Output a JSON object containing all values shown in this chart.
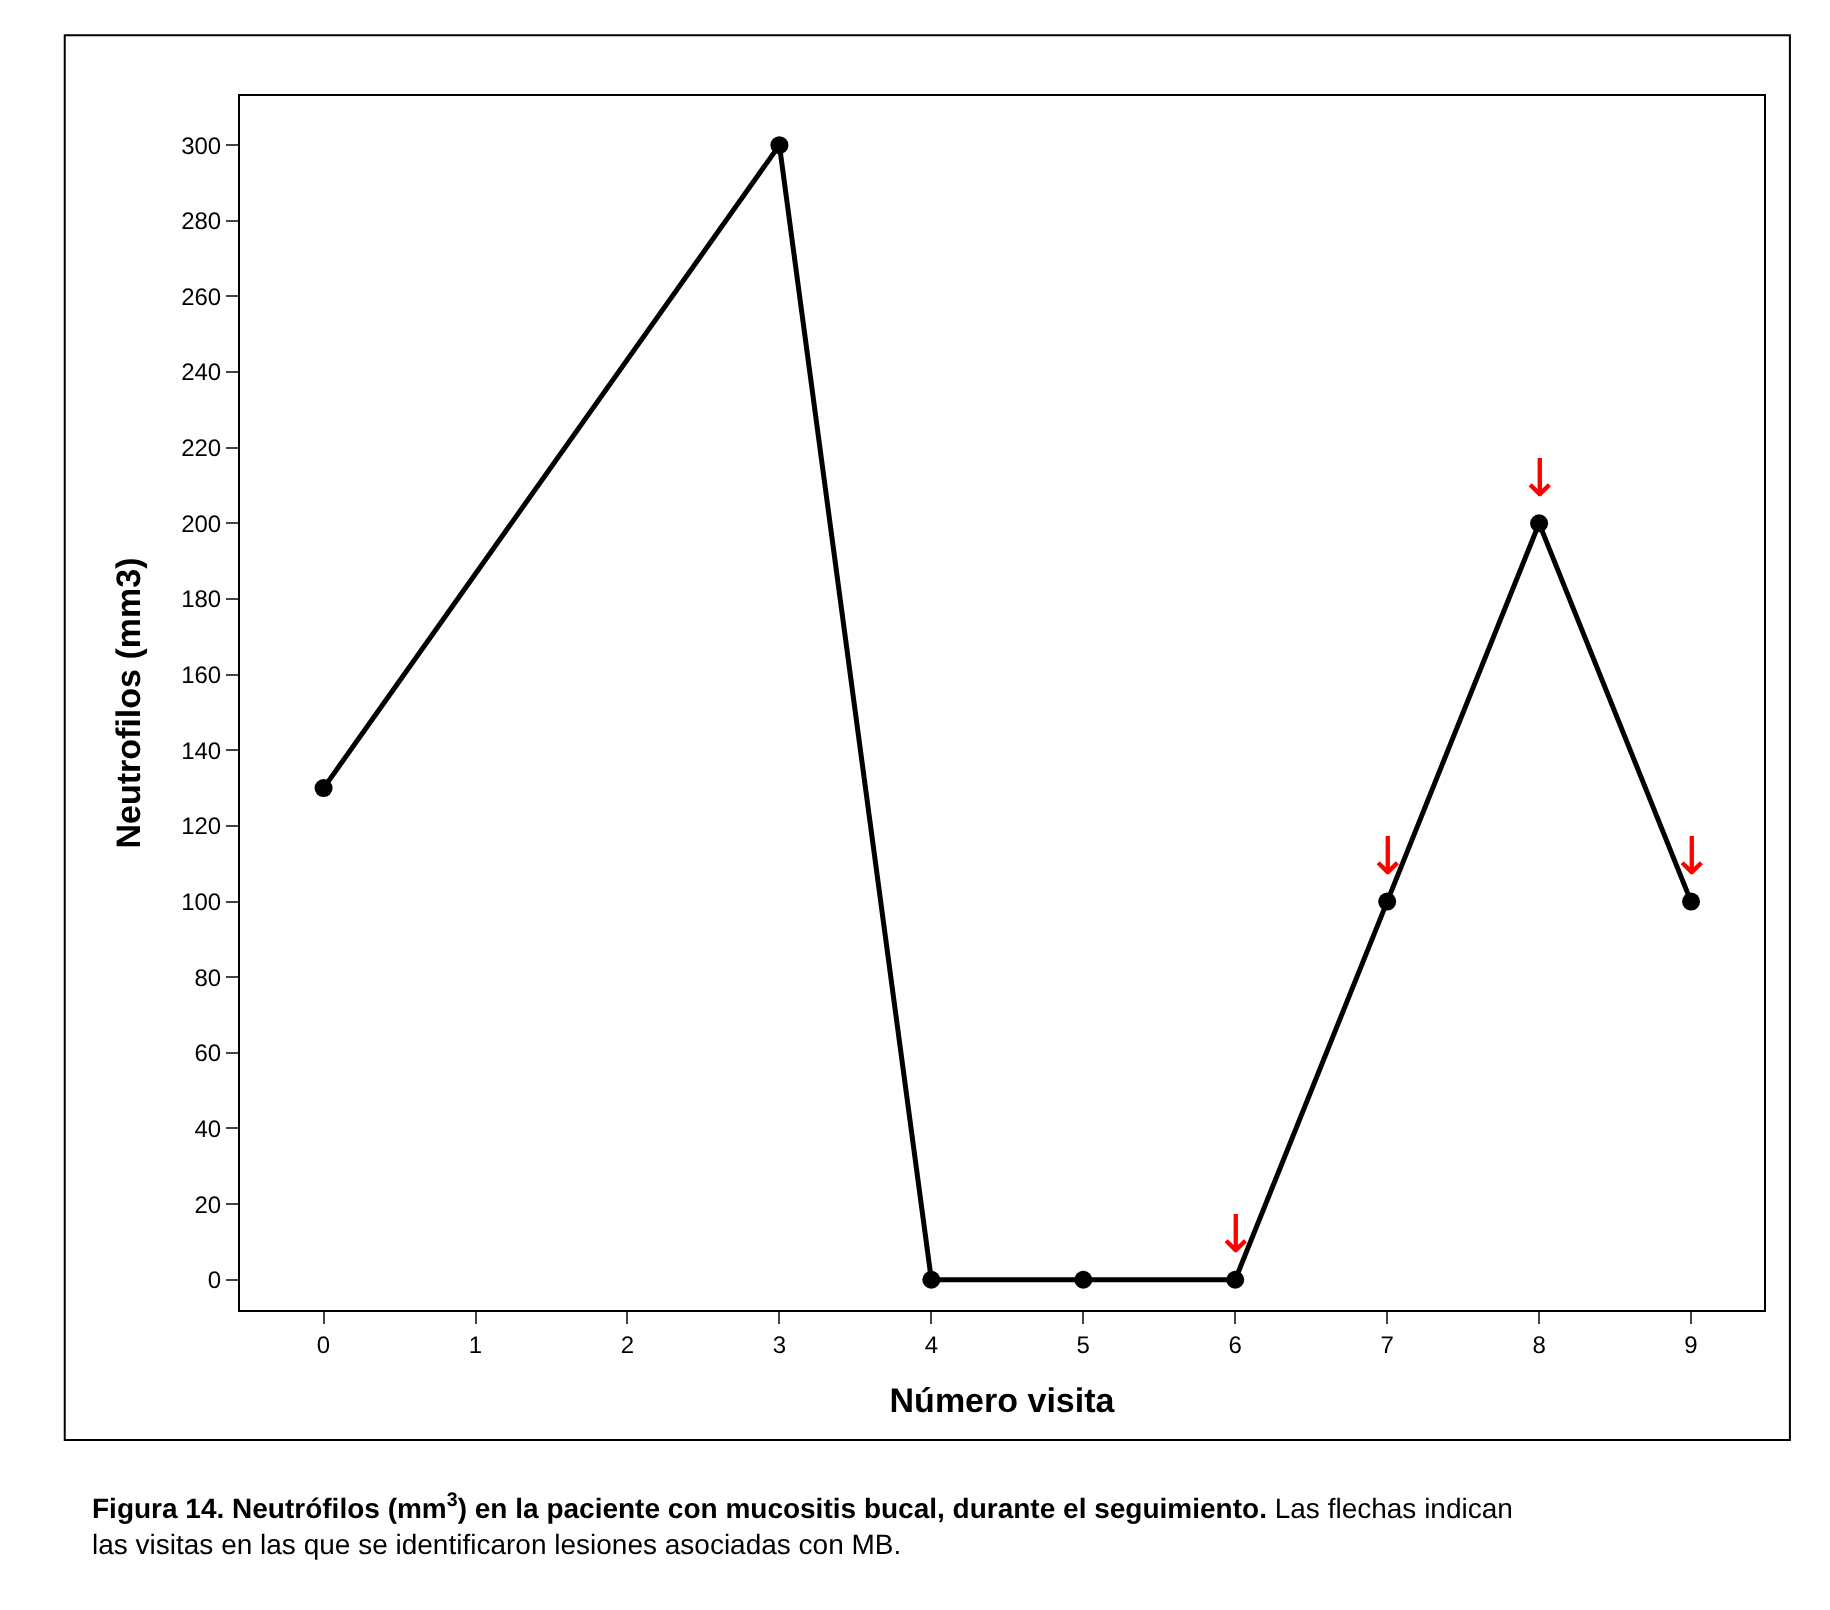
{
  "chart_data": {
    "type": "line",
    "xlabel": "Número visita",
    "ylabel": "Neutrofilos (mm3)",
    "x": [
      0,
      3,
      4,
      5,
      6,
      7,
      8,
      9
    ],
    "series": [
      {
        "color": "#000000",
        "values": [
          130,
          300,
          0,
          0,
          0,
          100,
          200,
          100
        ]
      }
    ],
    "xlim": [
      -0.55,
      9.48
    ],
    "xticks": [
      0,
      1,
      2,
      3,
      4,
      5,
      6,
      7,
      8,
      9
    ],
    "ylim": [
      -8,
      313
    ],
    "yticks": [
      0,
      20,
      40,
      60,
      80,
      100,
      120,
      140,
      160,
      180,
      200,
      220,
      240,
      260,
      280,
      300
    ],
    "marker": "circle",
    "line_style": "solid",
    "annotations": [
      {
        "text": "↓",
        "x": 6,
        "y": 0
      },
      {
        "text": "↓",
        "x": 7,
        "y": 100
      },
      {
        "text": "↓",
        "x": 8,
        "y": 200
      },
      {
        "text": "↓",
        "x": 9,
        "y": 100
      },
      "Figura 14. Neutrófilos (mm$^{3}$) en la paciente con mucositis bucal, durante el seguimiento.",
      "Las flechas indican las visitas en las que se identificaron lesiones asociadas con MB."
    ]
  }
}
